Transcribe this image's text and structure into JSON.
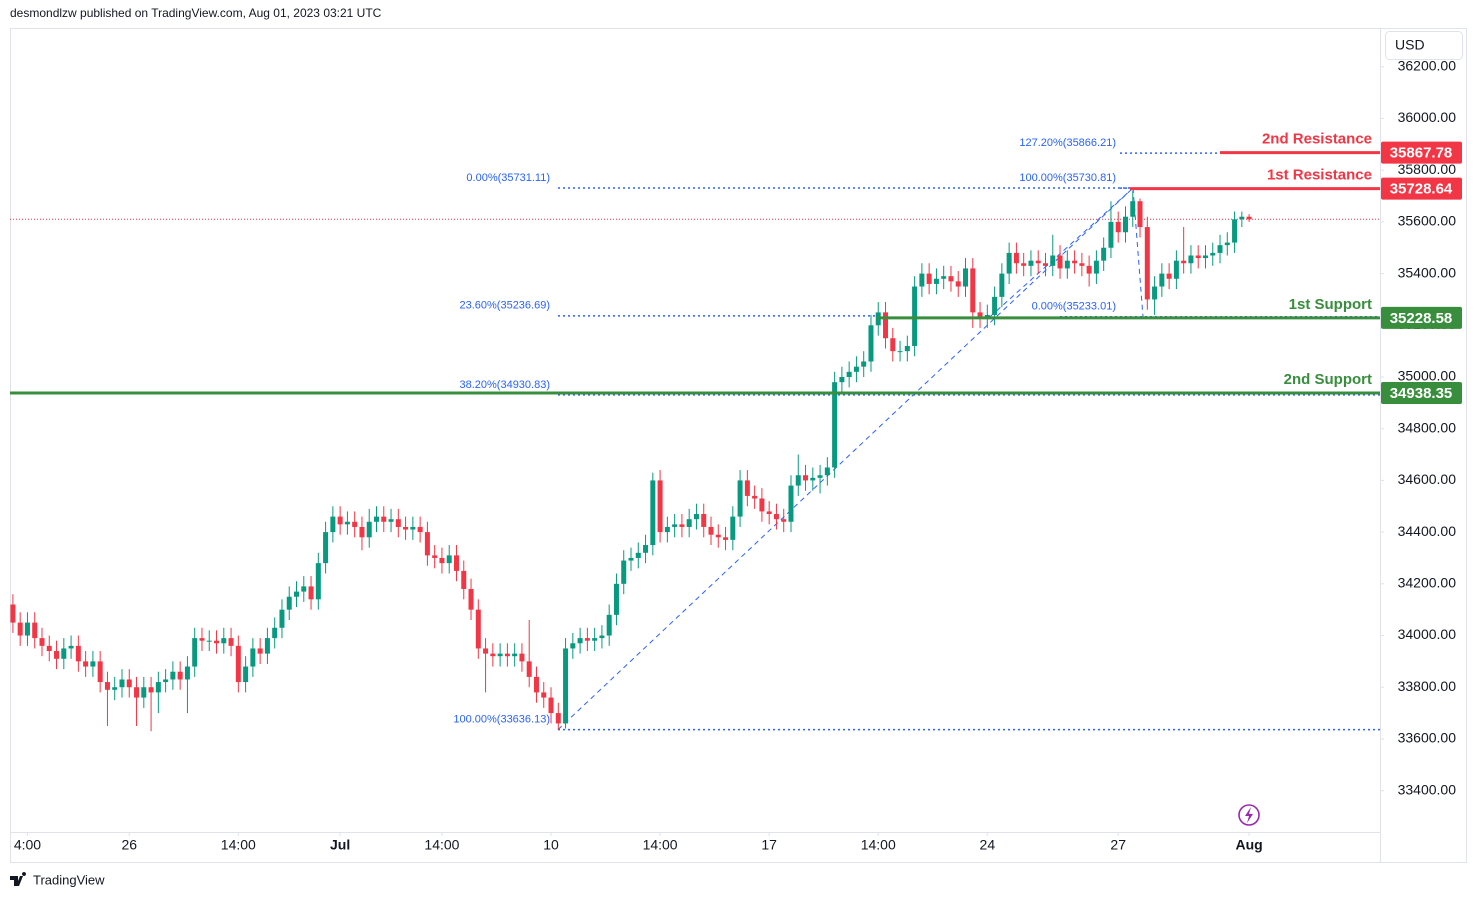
{
  "header": {
    "byline": "desmondlzw published on TradingView.com, Aug 01, 2023 03:21 UTC",
    "currency": "USD",
    "logo": "TradingView"
  },
  "chart_data": {
    "type": "candlestick",
    "up_color": "#089981",
    "down_color": "#f23645",
    "grid": false,
    "xlim": [
      -0.4,
      188
    ],
    "xticks": [
      {
        "value": 2,
        "label": "4:00"
      },
      {
        "value": 16,
        "label": "26"
      },
      {
        "value": 31,
        "label": "14:00"
      },
      {
        "value": 45,
        "label": "Jul"
      },
      {
        "value": 59,
        "label": "14:00"
      },
      {
        "value": 74,
        "label": "10"
      },
      {
        "value": 89,
        "label": "14:00"
      },
      {
        "value": 104,
        "label": "17"
      },
      {
        "value": 119,
        "label": "14:00"
      },
      {
        "value": 134,
        "label": "24"
      },
      {
        "value": 152,
        "label": "27"
      },
      {
        "value": 170,
        "label": "Aug"
      }
    ],
    "ylim": [
      33240,
      36350
    ],
    "yticks": [
      {
        "value": 33400,
        "label": "33400.00"
      },
      {
        "value": 33600,
        "label": "33600.00"
      },
      {
        "value": 33800,
        "label": "33800.00"
      },
      {
        "value": 34000,
        "label": "34000.00"
      },
      {
        "value": 34200,
        "label": "34200.00"
      },
      {
        "value": 34400,
        "label": "34400.00"
      },
      {
        "value": 34600,
        "label": "34600.00"
      },
      {
        "value": 34800,
        "label": "34800.00"
      },
      {
        "value": 35000,
        "label": "35000.00"
      },
      {
        "value": 35200,
        "label": "35200.00"
      },
      {
        "value": 35400,
        "label": "35400.00"
      },
      {
        "value": 35600,
        "label": "35600.00"
      },
      {
        "value": 35800,
        "label": "35800.00"
      },
      {
        "value": 36000,
        "label": "36000.00"
      },
      {
        "value": 36200,
        "label": "36200.00"
      }
    ],
    "open": [
      34120,
      34050,
      34000,
      34050,
      33990,
      33960,
      33940,
      33910,
      33950,
      33960,
      33900,
      33880,
      33900,
      33820,
      33790,
      33800,
      33830,
      33800,
      33760,
      33800,
      33780,
      33820,
      33830,
      33860,
      33830,
      33880,
      33990,
      33980,
      33980,
      33970,
      33990,
      33960,
      33820,
      33880,
      33950,
      33930,
      33990,
      34030,
      34100,
      34150,
      34170,
      34190,
      34140,
      34280,
      34400,
      34460,
      34430,
      34440,
      34420,
      34380,
      34440,
      34460,
      34440,
      34450,
      34420,
      34410,
      34420,
      34400,
      34310,
      34300,
      34280,
      34310,
      34250,
      34180,
      34100,
      33950,
      33930,
      33920,
      33930,
      33920,
      33930,
      33900,
      33840,
      33780,
      33760,
      33700,
      33660,
      33950,
      33970,
      33990,
      33980,
      33990,
      34000,
      34080,
      34200,
      34290,
      34300,
      34320,
      34350,
      34600,
      34400,
      34420,
      34430,
      34420,
      34450,
      34470,
      34420,
      34390,
      34380,
      34370,
      34460,
      34600,
      34540,
      34530,
      34480,
      34470,
      34450,
      34440,
      34580,
      34620,
      34600,
      34610,
      34620,
      34650,
      34980,
      35000,
      35020,
      35040,
      35060,
      35200,
      35250,
      35150,
      35100,
      35100,
      35120,
      35350,
      35400,
      35360,
      35380,
      35390,
      35370,
      35350,
      35420,
      35250,
      35230,
      35240,
      35310,
      35400,
      35480,
      35440,
      35430,
      35450,
      35440,
      35430,
      35470,
      35420,
      35450,
      35440,
      35430,
      35400,
      35450,
      35500,
      35600,
      35560,
      35620,
      35680,
      35580,
      35300,
      35350,
      35400,
      35380,
      35450,
      35440,
      35470,
      35460,
      35470,
      35480,
      35510,
      35520,
      35610,
      35620
    ],
    "high": [
      34160,
      34090,
      34090,
      34090,
      34030,
      34000,
      33980,
      33990,
      34000,
      34000,
      33940,
      33940,
      33940,
      33860,
      33840,
      33870,
      33870,
      33840,
      33840,
      33840,
      33860,
      33870,
      33900,
      33900,
      33920,
      34030,
      34030,
      34020,
      34020,
      34030,
      34030,
      34000,
      33920,
      33990,
      33990,
      34030,
      34070,
      34140,
      34190,
      34210,
      34230,
      34230,
      34320,
      34440,
      34500,
      34500,
      34480,
      34480,
      34460,
      34490,
      34500,
      34500,
      34490,
      34490,
      34460,
      34460,
      34460,
      34440,
      34350,
      34340,
      34350,
      34350,
      34290,
      34220,
      34140,
      33990,
      33970,
      33970,
      33970,
      33970,
      33970,
      34060,
      33880,
      33820,
      33800,
      33740,
      33990,
      34010,
      34030,
      34030,
      34030,
      34040,
      34120,
      34240,
      34330,
      34340,
      34360,
      34390,
      34630,
      34640,
      34460,
      34470,
      34470,
      34490,
      34510,
      34510,
      34460,
      34430,
      34420,
      34500,
      34640,
      34640,
      34580,
      34570,
      34520,
      34510,
      34490,
      34620,
      34700,
      34660,
      34650,
      34660,
      34690,
      35020,
      35040,
      35060,
      35080,
      35100,
      35240,
      35290,
      35290,
      35190,
      35140,
      35160,
      35390,
      35440,
      35440,
      35420,
      35430,
      35430,
      35410,
      35460,
      35460,
      35290,
      35280,
      35350,
      35440,
      35520,
      35520,
      35480,
      35490,
      35490,
      35480,
      35550,
      35510,
      35490,
      35490,
      35480,
      35470,
      35490,
      35540,
      35680,
      35640,
      35660,
      35720,
      35690,
      35620,
      35390,
      35440,
      35440,
      35490,
      35580,
      35510,
      35510,
      35510,
      35520,
      35550,
      35560,
      35640,
      35640,
      35630
    ],
    "low": [
      34010,
      33960,
      33960,
      33950,
      33920,
      33900,
      33870,
      33870,
      33910,
      33860,
      33840,
      33840,
      33780,
      33650,
      33750,
      33760,
      33760,
      33650,
      33720,
      33630,
      33700,
      33780,
      33790,
      33790,
      33700,
      33840,
      33940,
      33940,
      33930,
      33930,
      33920,
      33780,
      33780,
      33840,
      33890,
      33890,
      33950,
      33990,
      34060,
      34110,
      34130,
      34100,
      34100,
      34240,
      34360,
      34390,
      34390,
      34380,
      34330,
      34340,
      34400,
      34400,
      34400,
      34380,
      34370,
      34370,
      34360,
      34270,
      34260,
      34240,
      34240,
      34210,
      34140,
      34060,
      33910,
      33780,
      33880,
      33880,
      33880,
      33880,
      33860,
      33800,
      33740,
      33720,
      33660,
      33636,
      33640,
      33910,
      33930,
      33940,
      33940,
      33950,
      33960,
      34040,
      34160,
      34250,
      34260,
      34280,
      34310,
      34360,
      34360,
      34380,
      34380,
      34380,
      34410,
      34380,
      34350,
      34340,
      34330,
      34330,
      34420,
      34500,
      34490,
      34440,
      34430,
      34410,
      34400,
      34400,
      34540,
      34560,
      34560,
      34550,
      34580,
      34610,
      34940,
      34960,
      34980,
      35000,
      35020,
      35160,
      35110,
      35060,
      35060,
      35060,
      35080,
      35310,
      35320,
      35320,
      35340,
      35330,
      35310,
      35310,
      35190,
      35190,
      35190,
      35200,
      35270,
      35360,
      35400,
      35390,
      35390,
      35400,
      35390,
      35390,
      35380,
      35380,
      35400,
      35390,
      35350,
      35360,
      35410,
      35460,
      35520,
      35520,
      35580,
      35540,
      35260,
      35240,
      35310,
      35340,
      35340,
      35400,
      35400,
      35420,
      35420,
      35430,
      35440,
      35470,
      35480,
      35580,
      35600
    ],
    "close": [
      34050,
      34000,
      34050,
      33990,
      33960,
      33940,
      33910,
      33950,
      33960,
      33900,
      33880,
      33900,
      33820,
      33790,
      33800,
      33830,
      33800,
      33760,
      33800,
      33780,
      33820,
      33830,
      33860,
      33830,
      33880,
      33990,
      33980,
      33980,
      33970,
      33990,
      33960,
      33820,
      33880,
      33950,
      33930,
      33990,
      34030,
      34100,
      34150,
      34170,
      34190,
      34140,
      34280,
      34400,
      34460,
      34430,
      34440,
      34420,
      34380,
      34440,
      34460,
      34440,
      34450,
      34420,
      34410,
      34420,
      34400,
      34310,
      34300,
      34280,
      34310,
      34250,
      34180,
      34100,
      33950,
      33930,
      33920,
      33930,
      33920,
      33930,
      33900,
      33840,
      33780,
      33760,
      33700,
      33660,
      33950,
      33970,
      33990,
      33980,
      33990,
      34000,
      34080,
      34200,
      34290,
      34300,
      34320,
      34350,
      34600,
      34400,
      34420,
      34430,
      34420,
      34450,
      34470,
      34420,
      34390,
      34380,
      34370,
      34460,
      34600,
      34540,
      34530,
      34480,
      34470,
      34450,
      34440,
      34580,
      34620,
      34600,
      34610,
      34620,
      34650,
      34980,
      35000,
      35020,
      35040,
      35060,
      35200,
      35250,
      35150,
      35100,
      35100,
      35120,
      35350,
      35400,
      35360,
      35380,
      35390,
      35370,
      35350,
      35420,
      35250,
      35230,
      35240,
      35310,
      35400,
      35480,
      35440,
      35430,
      35450,
      35440,
      35430,
      35470,
      35420,
      35450,
      35440,
      35430,
      35400,
      35450,
      35500,
      35600,
      35560,
      35620,
      35680,
      35580,
      35300,
      35350,
      35400,
      35380,
      35450,
      35440,
      35470,
      35460,
      35470,
      35480,
      35510,
      35520,
      35610,
      35620,
      35610
    ],
    "levels": [
      {
        "name": "2nd Resistance",
        "value": 35867.78,
        "color": "#f23645"
      },
      {
        "name": "1st Resistance",
        "value": 35728.64,
        "color": "#f23645"
      },
      {
        "name": "1st Support",
        "value": 35228.58,
        "color": "#388e3c"
      },
      {
        "name": "2nd Support",
        "value": 34938.35,
        "color": "#388e3c"
      }
    ],
    "fibonacci": [
      {
        "label": "0.00%(35731.11)",
        "value": 35731.11
      },
      {
        "label": "23.60%(35236.69)",
        "value": 35236.69
      },
      {
        "label": "38.20%(34930.83)",
        "value": 34930.83
      },
      {
        "label": "100.00%(33636.13)",
        "value": 33636.13
      },
      {
        "label": "127.20%(35866.21)",
        "value": 35866.21
      },
      {
        "label": "100.00%(35730.81)",
        "value": 35730.81
      },
      {
        "label": "0.00%(35233.01)",
        "value": 35233.01
      }
    ]
  }
}
